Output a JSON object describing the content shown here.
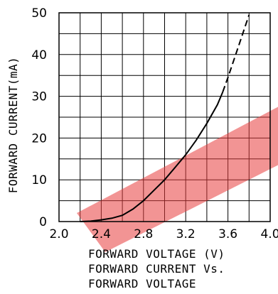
{
  "chart_data": {
    "type": "line",
    "xlabel": "FORWARD VOLTAGE (V)",
    "ylabel": "FORWARD CURRENT(mA)",
    "caption": [
      "FORWARD CURRENT Vs.",
      "FORWARD VOLTAGE"
    ],
    "xlim": [
      2.0,
      4.0
    ],
    "ylim": [
      0,
      50
    ],
    "xticks": [
      "2.0",
      "2.4",
      "2.8",
      "3.2",
      "3.6",
      "4.0"
    ],
    "yticks": [
      "0",
      "10",
      "20",
      "30",
      "40",
      "50"
    ],
    "grid": true,
    "series": [
      {
        "style": "solid",
        "x": [
          2.2,
          2.3,
          2.4,
          2.5,
          2.6,
          2.7,
          2.8,
          2.9,
          3.0,
          3.1,
          3.2,
          3.3,
          3.4,
          3.5,
          3.55
        ],
        "y": [
          0.0,
          0.1,
          0.4,
          0.8,
          1.5,
          3.0,
          5.0,
          7.5,
          10.0,
          13.0,
          16.0,
          19.5,
          23.5,
          28.0,
          31.0
        ]
      },
      {
        "style": "dashed",
        "x": [
          3.55,
          3.6,
          3.7,
          3.8
        ],
        "y": [
          31.0,
          34.5,
          42.0,
          49.5
        ]
      }
    ]
  },
  "colors": {
    "line": "#000000",
    "grid": "#000000",
    "watermark": "#e83c3c"
  }
}
